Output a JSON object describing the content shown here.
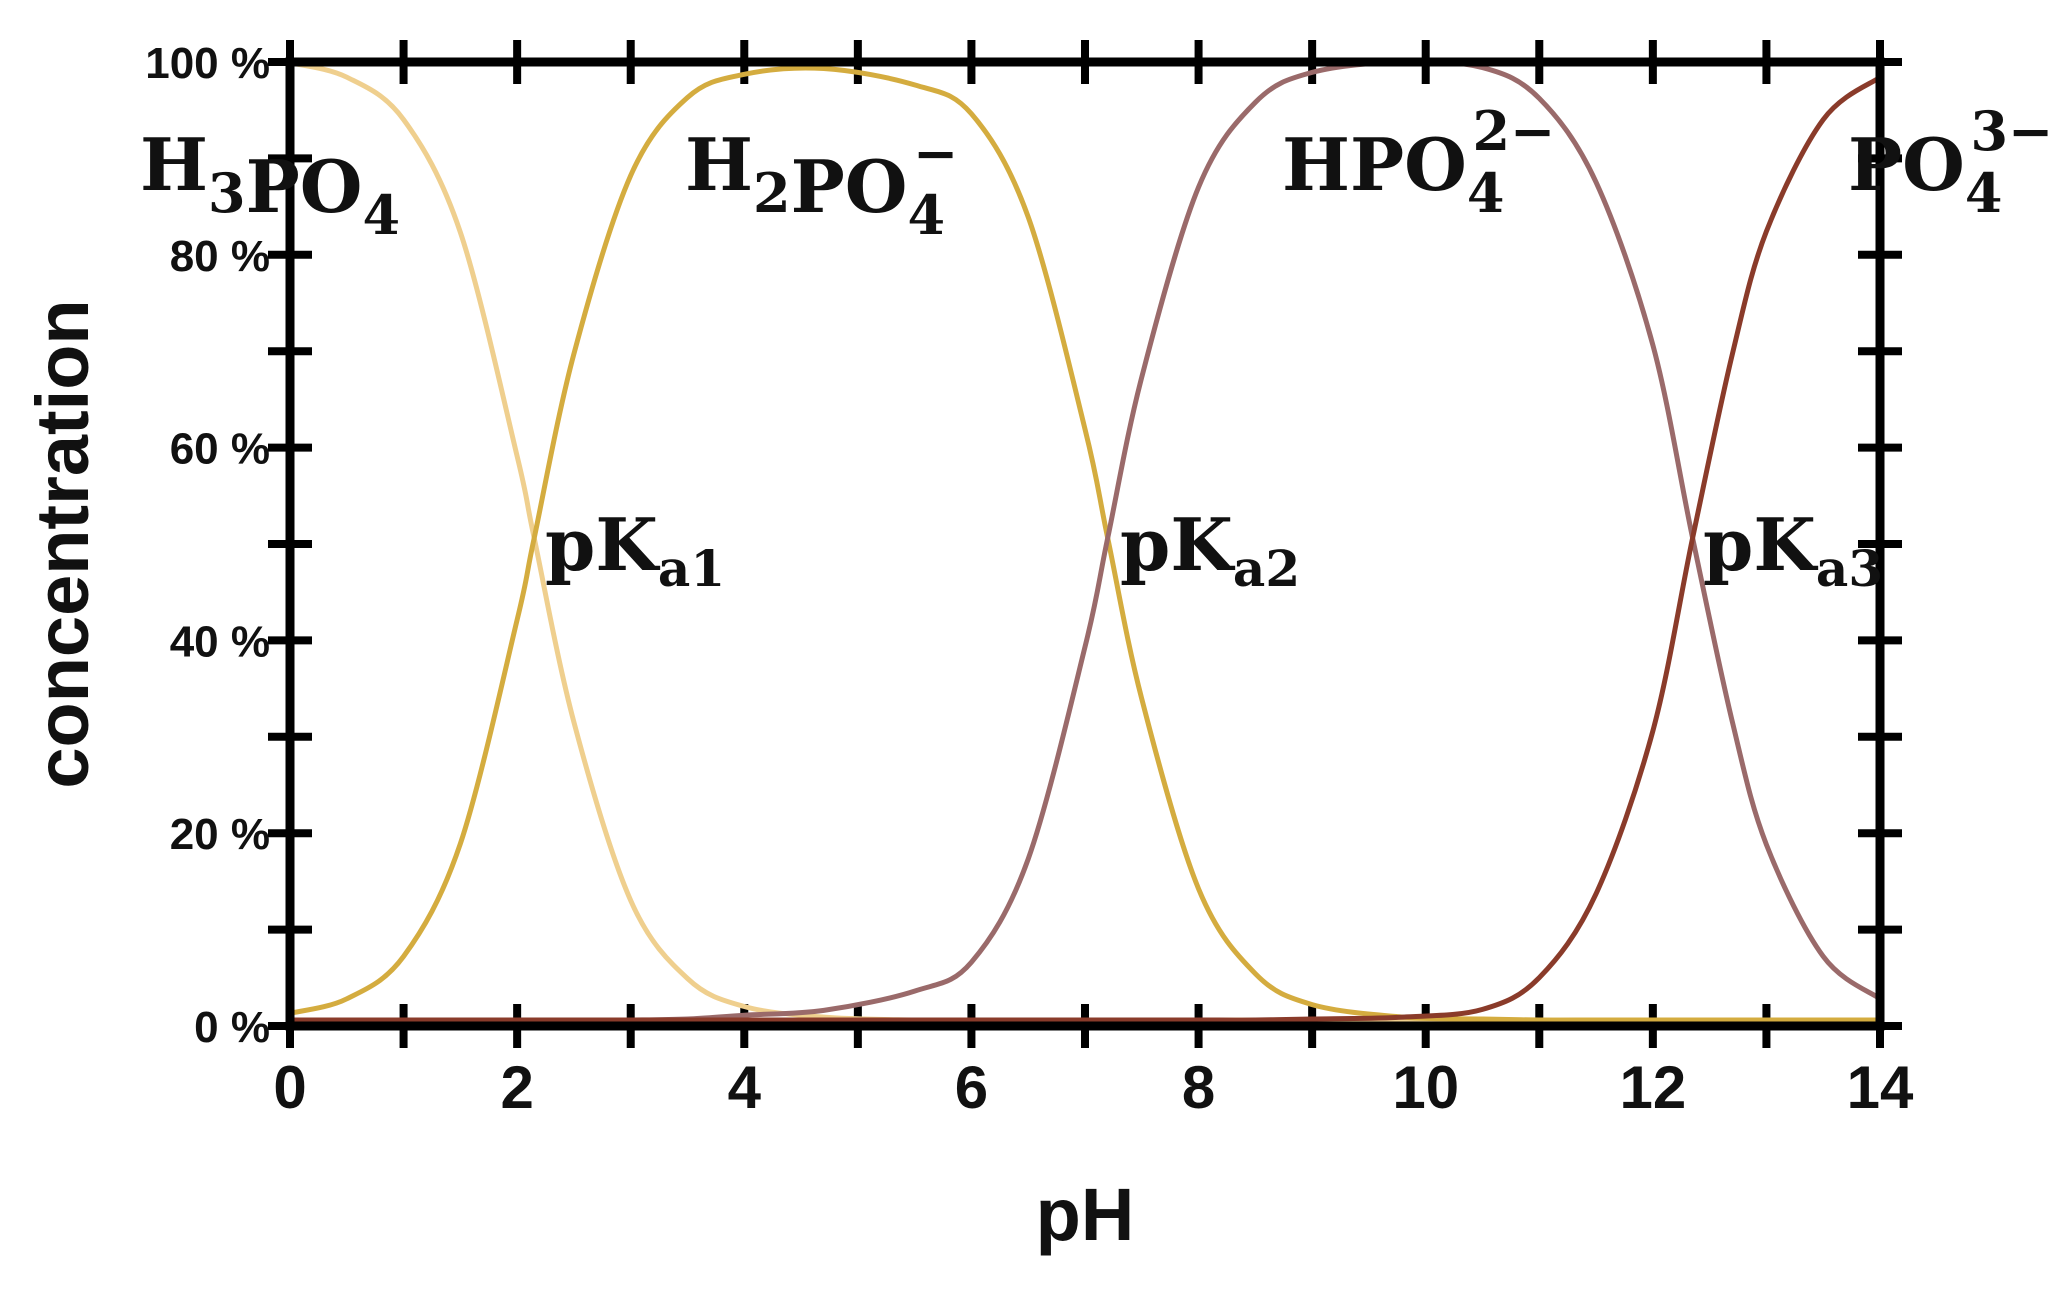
{
  "chart_data": {
    "type": "line",
    "xlabel": "pH",
    "ylabel": "concentration",
    "xlim": [
      0,
      14
    ],
    "ylim": [
      0,
      100
    ],
    "x_ticks": [
      0,
      2,
      4,
      6,
      8,
      10,
      12,
      14
    ],
    "x_tick_labels": [
      "0",
      "2",
      "4",
      "6",
      "8",
      "10",
      "12",
      "14"
    ],
    "y_ticks": [
      0,
      20,
      40,
      60,
      80,
      100
    ],
    "y_tick_labels": [
      "0 %",
      "20 %",
      "40 %",
      "60 %",
      "80 %",
      "100 %"
    ],
    "grid": false,
    "pKa": [
      2.15,
      7.2,
      12.35
    ],
    "x": [
      0,
      0.5,
      1,
      1.5,
      2,
      2.15,
      2.5,
      3,
      3.5,
      4,
      4.7,
      5.5,
      6,
      6.5,
      7,
      7.2,
      7.5,
      8,
      8.5,
      9,
      9.8,
      10.5,
      11,
      11.5,
      12,
      12.35,
      12.7,
      13,
      13.5,
      14
    ],
    "series": [
      {
        "name": "H₃PO₄",
        "color": "#efcf8e",
        "values": [
          99.3,
          97.8,
          93.4,
          81.7,
          58.5,
          50.0,
          30.9,
          12.4,
          4.3,
          1.4,
          0.3,
          0.0,
          0.0,
          0.0,
          0.0,
          0.0,
          0.0,
          0.0,
          0.0,
          0.0,
          0.0,
          0.0,
          0.0,
          0.0,
          0.0,
          0.0,
          0.0,
          0.0,
          0.0,
          0.0
        ]
      },
      {
        "name": "H₂PO₄⁻",
        "color": "#d4ac3f",
        "values": [
          0.7,
          2.2,
          6.6,
          18.3,
          41.5,
          50.0,
          69.1,
          87.6,
          95.7,
          98.1,
          98.7,
          97.0,
          94.0,
          83.3,
          61.3,
          50.0,
          33.3,
          13.6,
          4.8,
          1.6,
          0.3,
          0.1,
          0.0,
          0.0,
          0.0,
          0.0,
          0.0,
          0.0,
          0.0,
          0.0
        ]
      },
      {
        "name": "HPO₄²⁻",
        "color": "#9a6a6a",
        "values": [
          0.0,
          0.0,
          0.0,
          0.0,
          0.0,
          0.0,
          0.0,
          0.0,
          0.1,
          0.5,
          1.0,
          3.0,
          6.0,
          16.7,
          38.7,
          50.0,
          66.7,
          86.4,
          95.2,
          98.3,
          99.4,
          98.8,
          95.6,
          86.9,
          70.0,
          50.0,
          30.9,
          18.2,
          6.6,
          2.2
        ]
      },
      {
        "name": "PO₄³⁻",
        "color": "#8a3b2a",
        "values": [
          0.0,
          0.0,
          0.0,
          0.0,
          0.0,
          0.0,
          0.0,
          0.0,
          0.0,
          0.0,
          0.0,
          0.0,
          0.0,
          0.0,
          0.0,
          0.0,
          0.0,
          0.0,
          0.0,
          0.1,
          0.3,
          1.1,
          4.4,
          13.1,
          30.0,
          50.0,
          69.1,
          81.8,
          93.4,
          97.8
        ]
      }
    ],
    "annotations": {
      "species": [
        {
          "id": "h3po4",
          "base": "H",
          "sub1": "3",
          "mid": "PO",
          "sub2": "4",
          "sup": "",
          "x": 0,
          "y": 90
        },
        {
          "id": "h2po4",
          "base": "H",
          "sub1": "2",
          "mid": "PO",
          "sub2": "4",
          "sup": "−",
          "x": 4.6,
          "y": 90
        },
        {
          "id": "hpo4",
          "base": "",
          "sub1": "",
          "mid": "HPO",
          "sub2": "4",
          "sup": "2−",
          "x": 9.9,
          "y": 90
        },
        {
          "id": "po4",
          "base": "",
          "sub1": "",
          "mid": "PO",
          "sub2": "4",
          "sup": "3−",
          "x": 13.8,
          "y": 90
        }
      ],
      "pka": [
        {
          "id": "pka1",
          "p": "p",
          "k": "K",
          "sub": "a1",
          "x": 2.15,
          "y": 50
        },
        {
          "id": "pka2",
          "p": "p",
          "k": "K",
          "sub": "a2",
          "x": 7.2,
          "y": 50
        },
        {
          "id": "pka3",
          "p": "p",
          "k": "K",
          "sub": "a3",
          "x": 12.35,
          "y": 50
        }
      ]
    }
  }
}
